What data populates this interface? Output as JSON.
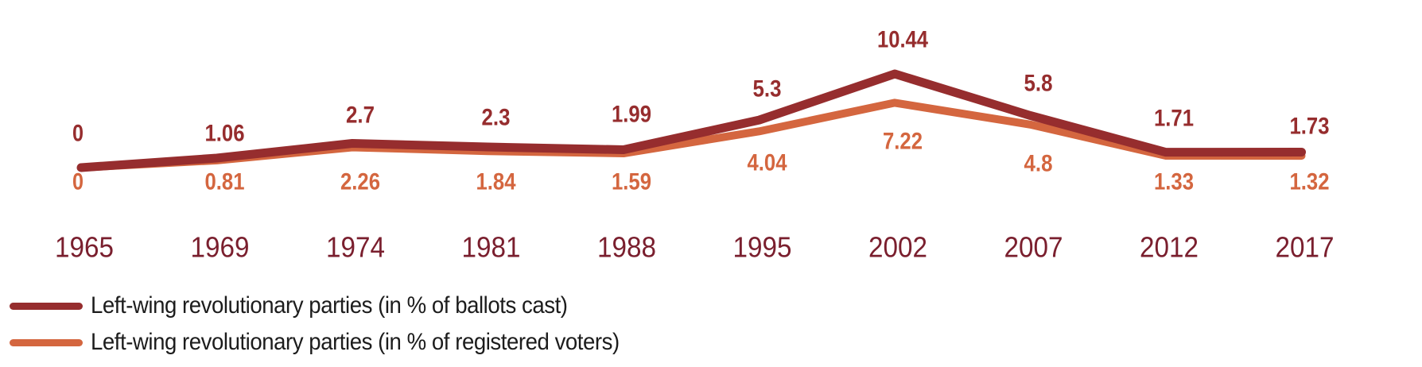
{
  "chart_data": {
    "type": "line",
    "title": "",
    "xlabel": "",
    "ylabel": "",
    "categories": [
      "1965",
      "1969",
      "1974",
      "1981",
      "1988",
      "1995",
      "2002",
      "2007",
      "2012",
      "2017"
    ],
    "series": [
      {
        "name": "Left-wing revolutionary parties (in % of ballots cast)",
        "color": "#962D2E",
        "labels": [
          "0",
          "1.06",
          "2.7",
          "2.3",
          "1.99",
          "5.3",
          "10.44",
          "5.8",
          "1.71",
          "1.73"
        ],
        "values": [
          0,
          1.06,
          2.7,
          2.3,
          1.99,
          5.3,
          10.44,
          5.8,
          1.71,
          1.73
        ],
        "label_position": "above"
      },
      {
        "name": "Left-wing revolutionary parties (in % of registered voters)",
        "color": "#D4663F",
        "labels": [
          "0",
          "0.81",
          "2.26",
          "1.84",
          "1.59",
          "4.04",
          "7.22",
          "4.8",
          "1.33",
          "1.32"
        ],
        "values": [
          0,
          0.81,
          2.26,
          1.84,
          1.59,
          4.04,
          7.22,
          4.8,
          1.33,
          1.32
        ],
        "label_position": "below"
      }
    ],
    "ylim": [
      0,
      10.44
    ],
    "grid": false,
    "axis_label_color": "#7A1F2E",
    "legend_placement": "bottom-left"
  }
}
